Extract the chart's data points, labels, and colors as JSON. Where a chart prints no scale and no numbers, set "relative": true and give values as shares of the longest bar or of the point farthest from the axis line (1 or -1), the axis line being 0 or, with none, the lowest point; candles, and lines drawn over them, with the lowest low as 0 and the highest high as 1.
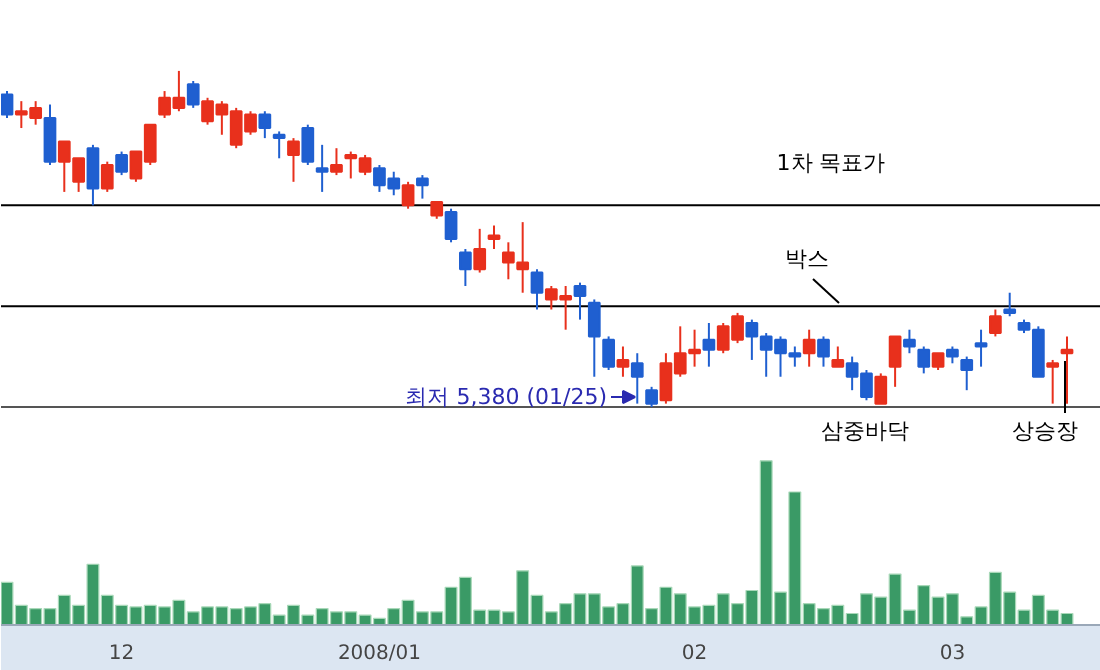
{
  "chart_data": [
    {
      "type": "candlestick",
      "relative": true,
      "grid": false,
      "categories": [
        null,
        null,
        null,
        null,
        null,
        null,
        null,
        null,
        null,
        null,
        null,
        null,
        null,
        null,
        null,
        null,
        null,
        null,
        null,
        null,
        null,
        null,
        null,
        null,
        null,
        null,
        null,
        null,
        null,
        null,
        null,
        null,
        null,
        null,
        null,
        null,
        null,
        null,
        null,
        null,
        null,
        null,
        null,
        null,
        null,
        null,
        null,
        null,
        null,
        null,
        null,
        null,
        null,
        null,
        null,
        null,
        null,
        null,
        null,
        null,
        null,
        null,
        null,
        null,
        null,
        null,
        null,
        null,
        null,
        null,
        null,
        null,
        null,
        null,
        null
      ],
      "ohlc": [
        [
          0.93,
          0.94,
          0.86,
          0.87
        ],
        [
          0.87,
          0.91,
          0.83,
          0.88
        ],
        [
          0.86,
          0.91,
          0.84,
          0.89
        ],
        [
          0.86,
          0.9,
          0.72,
          0.73
        ],
        [
          0.73,
          0.79,
          0.64,
          0.79
        ],
        [
          0.67,
          0.74,
          0.64,
          0.74
        ],
        [
          0.77,
          0.78,
          0.6,
          0.65
        ],
        [
          0.65,
          0.73,
          0.64,
          0.72
        ],
        [
          0.75,
          0.76,
          0.69,
          0.7
        ],
        [
          0.68,
          0.76,
          0.67,
          0.76
        ],
        [
          0.73,
          0.84,
          0.72,
          0.84
        ],
        [
          0.87,
          0.94,
          0.86,
          0.92
        ],
        [
          0.89,
          1.0,
          0.88,
          0.92
        ],
        [
          0.96,
          0.97,
          0.89,
          0.9
        ],
        [
          0.85,
          0.92,
          0.84,
          0.91
        ],
        [
          0.87,
          0.91,
          0.81,
          0.9
        ],
        [
          0.78,
          0.89,
          0.77,
          0.88
        ],
        [
          0.82,
          0.88,
          0.81,
          0.87
        ],
        [
          0.87,
          0.88,
          0.8,
          0.83
        ],
        [
          0.81,
          0.82,
          0.74,
          0.8
        ],
        [
          0.75,
          0.8,
          0.67,
          0.79
        ],
        [
          0.83,
          0.84,
          0.72,
          0.73
        ],
        [
          0.71,
          0.78,
          0.64,
          0.7
        ],
        [
          0.7,
          0.77,
          0.69,
          0.72
        ],
        [
          0.74,
          0.76,
          0.68,
          0.75
        ],
        [
          0.7,
          0.75,
          0.69,
          0.74
        ],
        [
          0.71,
          0.72,
          0.64,
          0.66
        ],
        [
          0.68,
          0.7,
          0.63,
          0.65
        ],
        [
          0.6,
          0.67,
          0.59,
          0.66
        ],
        [
          0.68,
          0.69,
          0.62,
          0.66
        ],
        [
          0.57,
          0.61,
          0.56,
          0.61
        ],
        [
          0.58,
          0.59,
          0.49,
          0.5
        ],
        [
          0.46,
          0.47,
          0.36,
          0.41
        ],
        [
          0.41,
          0.53,
          0.4,
          0.47
        ],
        [
          0.5,
          0.54,
          0.47,
          0.51
        ],
        [
          0.43,
          0.49,
          0.38,
          0.46
        ],
        [
          0.41,
          0.55,
          0.34,
          0.43
        ],
        [
          0.4,
          0.41,
          0.29,
          0.34
        ],
        [
          0.32,
          0.36,
          0.29,
          0.35
        ],
        [
          0.32,
          0.36,
          0.23,
          0.33
        ],
        [
          0.36,
          0.37,
          0.26,
          0.33
        ],
        [
          0.31,
          0.32,
          0.09,
          0.21
        ],
        [
          0.2,
          0.21,
          0.11,
          0.12
        ],
        [
          0.12,
          0.18,
          0.09,
          0.14
        ],
        [
          0.13,
          0.16,
          0.01,
          0.09
        ],
        [
          0.05,
          0.06,
          0.0,
          0.01
        ],
        [
          0.02,
          0.16,
          0.01,
          0.13
        ],
        [
          0.1,
          0.24,
          0.09,
          0.16
        ],
        [
          0.16,
          0.23,
          0.12,
          0.17
        ],
        [
          0.2,
          0.25,
          0.12,
          0.17
        ],
        [
          0.17,
          0.25,
          0.16,
          0.24
        ],
        [
          0.2,
          0.28,
          0.19,
          0.27
        ],
        [
          0.25,
          0.26,
          0.14,
          0.21
        ],
        [
          0.21,
          0.22,
          0.09,
          0.17
        ],
        [
          0.2,
          0.21,
          0.09,
          0.16
        ],
        [
          0.16,
          0.18,
          0.12,
          0.15
        ],
        [
          0.16,
          0.23,
          0.12,
          0.2
        ],
        [
          0.2,
          0.21,
          0.12,
          0.15
        ],
        [
          0.12,
          0.18,
          0.12,
          0.14
        ],
        [
          0.13,
          0.15,
          0.05,
          0.09
        ],
        [
          0.1,
          0.11,
          0.02,
          0.03
        ],
        [
          0.01,
          0.1,
          0.01,
          0.09
        ],
        [
          0.12,
          0.21,
          0.06,
          0.21
        ],
        [
          0.2,
          0.23,
          0.16,
          0.18
        ],
        [
          0.17,
          0.18,
          0.1,
          0.12
        ],
        [
          0.12,
          0.16,
          0.11,
          0.16
        ],
        [
          0.17,
          0.18,
          0.13,
          0.15
        ],
        [
          0.14,
          0.15,
          0.05,
          0.11
        ],
        [
          0.19,
          0.23,
          0.12,
          0.18
        ],
        [
          0.22,
          0.29,
          0.21,
          0.27
        ],
        [
          0.29,
          0.34,
          0.27,
          0.28
        ],
        [
          0.25,
          0.26,
          0.22,
          0.23
        ],
        [
          0.23,
          0.24,
          0.09,
          0.09
        ],
        [
          0.12,
          0.14,
          0.01,
          0.13
        ],
        [
          0.16,
          0.21,
          0.01,
          0.17
        ]
      ],
      "colors": [
        "#1f5fd0",
        "#e8301c",
        "#e8301c",
        "#1f5fd0",
        "#e8301c",
        "#e8301c",
        "#1f5fd0",
        "#e8301c",
        "#1f5fd0",
        "#e8301c",
        "#e8301c",
        "#e8301c",
        "#e8301c",
        "#1f5fd0",
        "#e8301c",
        "#e8301c",
        "#e8301c",
        "#e8301c",
        "#1f5fd0",
        "#1f5fd0",
        "#e8301c",
        "#1f5fd0",
        "#1f5fd0",
        "#e8301c",
        "#e8301c",
        "#e8301c",
        "#1f5fd0",
        "#1f5fd0",
        "#e8301c",
        "#1f5fd0",
        "#e8301c",
        "#1f5fd0",
        "#1f5fd0",
        "#e8301c",
        "#e8301c",
        "#e8301c",
        "#e8301c",
        "#1f5fd0",
        "#e8301c",
        "#e8301c",
        "#1f5fd0",
        "#1f5fd0",
        "#1f5fd0",
        "#e8301c",
        "#1f5fd0",
        "#1f5fd0",
        "#e8301c",
        "#e8301c",
        "#e8301c",
        "#1f5fd0",
        "#e8301c",
        "#e8301c",
        "#1f5fd0",
        "#1f5fd0",
        "#1f5fd0",
        "#1f5fd0",
        "#e8301c",
        "#1f5fd0",
        "#e8301c",
        "#1f5fd0",
        "#1f5fd0",
        "#e8301c",
        "#e8301c",
        "#1f5fd0",
        "#1f5fd0",
        "#e8301c",
        "#1f5fd0",
        "#1f5fd0",
        "#1f5fd0",
        "#e8301c",
        "#1f5fd0",
        "#1f5fd0",
        "#1f5fd0",
        "#e8301c",
        "#e8301c"
      ],
      "ref_lines": [
        {
          "axis": "y",
          "value": 0.6,
          "label": "1차 목표가",
          "color": "#000000"
        },
        {
          "axis": "y",
          "value": 0.3,
          "label": "박스",
          "color": "#000000"
        },
        {
          "axis": "y",
          "value": 0.0,
          "label": "삼중바닥",
          "color": "#555555"
        }
      ],
      "annotations": [
        "최저 5,380 (01/25)",
        "상승장"
      ]
    },
    {
      "type": "bar",
      "relative": true,
      "grid": false,
      "color": "#3a9a66",
      "categories": [
        null,
        null,
        null,
        null,
        null,
        null,
        null,
        null,
        "12",
        null,
        null,
        null,
        null,
        null,
        null,
        null,
        null,
        null,
        null,
        null,
        null,
        null,
        null,
        null,
        null,
        null,
        "2008/01",
        null,
        null,
        null,
        null,
        null,
        null,
        null,
        null,
        null,
        null,
        null,
        null,
        null,
        null,
        null,
        null,
        null,
        null,
        null,
        null,
        null,
        "02",
        null,
        null,
        null,
        null,
        null,
        null,
        null,
        null,
        null,
        null,
        null,
        null,
        null,
        null,
        null,
        null,
        null,
        "03",
        null,
        null,
        null,
        null,
        null,
        null,
        null,
        null
      ],
      "values": [
        0.26,
        0.12,
        0.1,
        0.1,
        0.18,
        0.12,
        0.37,
        0.18,
        0.12,
        0.11,
        0.12,
        0.11,
        0.15,
        0.08,
        0.11,
        0.11,
        0.1,
        0.11,
        0.13,
        0.06,
        0.12,
        0.06,
        0.1,
        0.08,
        0.08,
        0.06,
        0.04,
        0.1,
        0.15,
        0.08,
        0.08,
        0.23,
        0.29,
        0.09,
        0.09,
        0.08,
        0.33,
        0.18,
        0.08,
        0.13,
        0.19,
        0.19,
        0.11,
        0.13,
        0.36,
        0.1,
        0.23,
        0.19,
        0.11,
        0.12,
        0.19,
        0.13,
        0.21,
        1.0,
        0.2,
        0.81,
        0.13,
        0.1,
        0.12,
        0.07,
        0.19,
        0.17,
        0.31,
        0.09,
        0.24,
        0.17,
        0.19,
        0.05,
        0.11,
        0.32,
        0.2,
        0.09,
        0.18,
        0.09,
        0.07
      ]
    }
  ]
}
